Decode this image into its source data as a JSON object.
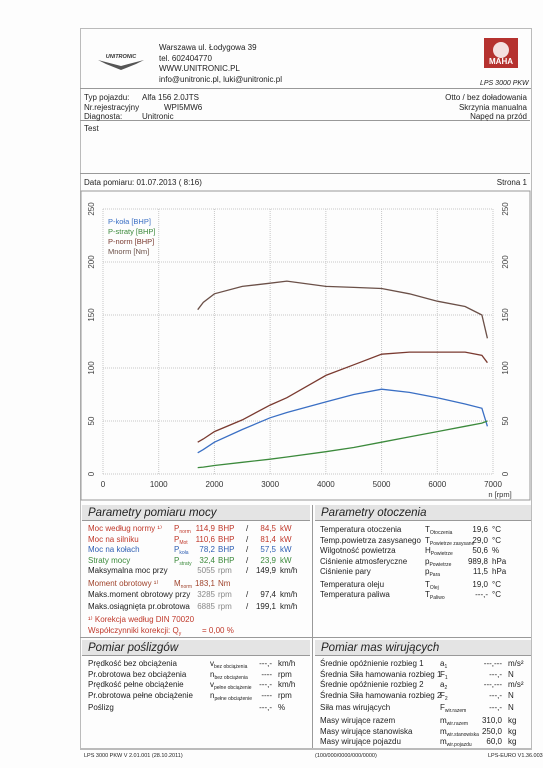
{
  "header": {
    "address": [
      "Warszawa ul. Łodygowa 39",
      "tel. 602404770",
      "WWW.UNITRONIC.PL",
      "info@unitronic.pl, luki@unitronic.pl"
    ],
    "logo_text": "UNITRONIC",
    "brand": "MAHA",
    "model": "LPS 3000 PKW"
  },
  "vehicle": {
    "left": [
      [
        "Typ pojazdu:",
        "Alfa 156 2.0JTS"
      ],
      [
        "Nr.rejestracyjny",
        "WPI5MW6"
      ],
      [
        "Diagnosta:",
        "Unitronic"
      ]
    ],
    "right": [
      "Otto / bez doładowania",
      "Skrzynia manualna",
      "Napęd na przód"
    ]
  },
  "test": "Test",
  "date": "Data pomiaru: 01.07.2013 ( 8:16)",
  "page": "Strona 1",
  "chart_data": {
    "type": "line",
    "x_label": "n [rpm]",
    "x": [
      1700,
      1800,
      2000,
      2500,
      3000,
      3300,
      4000,
      4500,
      5000,
      5500,
      6000,
      6500,
      6800,
      6900
    ],
    "series": [
      {
        "name": "P-koła [BHP]",
        "color": "#3a6fc4",
        "values": [
          20,
          23,
          30,
          42,
          53,
          58,
          68,
          75,
          80,
          77,
          72,
          66,
          62,
          45
        ]
      },
      {
        "name": "P-straty [BHP]",
        "color": "#3c8a3c",
        "values": [
          6,
          6.5,
          8,
          11,
          14,
          16,
          21,
          25,
          30,
          35,
          40,
          45,
          48,
          50
        ]
      },
      {
        "name": "P-norm [BHP]",
        "color": "#7a3a30",
        "values": [
          30,
          33,
          40,
          51,
          65,
          72,
          93,
          103,
          113,
          115,
          115,
          115,
          112,
          105
        ]
      },
      {
        "name": "Mnorm [Nm]",
        "color": "#6b5048",
        "values": [
          155,
          162,
          170,
          177,
          180,
          182,
          177,
          176,
          175,
          170,
          163,
          158,
          150,
          128
        ]
      }
    ],
    "xlim": [
      0,
      7000
    ],
    "xticks": [
      0,
      1000,
      2000,
      3000,
      4000,
      5000,
      6000,
      7000
    ],
    "ylim": [
      0,
      250
    ],
    "yticks": [
      0,
      50,
      100,
      150,
      200,
      250
    ],
    "grid": true
  },
  "power": {
    "title": "Parametry pomiaru mocy",
    "rows": [
      {
        "label": "Moc według normy ¹⁾",
        "sym": "P",
        "sub": "norm",
        "v1": "114,9",
        "u1": "BHP",
        "sep": "/",
        "v2": "84,5",
        "u2": "kW",
        "color": "#c0392b"
      },
      {
        "label": "Moc na silniku",
        "sym": "P",
        "sub": "Mot",
        "v1": "110,6",
        "u1": "BHP",
        "sep": "/",
        "v2": "81,4",
        "u2": "kW",
        "color": "#c0392b"
      },
      {
        "label": "Moc na kołach",
        "sym": "P",
        "sub": "koła",
        "v1": "78,2",
        "u1": "BHP",
        "sep": "/",
        "v2": "57,5",
        "u2": "kW",
        "color": "#2f5fb3"
      },
      {
        "label": "Straty mocy",
        "sym": "P",
        "sub": "straty",
        "v1": "32,4",
        "u1": "BHP",
        "sep": "/",
        "v2": "23,9",
        "u2": "kW",
        "color": "#3c8a3c"
      },
      {
        "label": "Maksymalna moc przy",
        "v1": "5055",
        "u1": "rpm",
        "sep": "/",
        "v2": "149,9",
        "u2": "km/h"
      },
      {
        "label": "Moment obrotowy ¹⁾",
        "sym": "M",
        "sub": "norm",
        "v1": "183,1",
        "u1": "Nm",
        "color": "#a0442c"
      },
      {
        "label": "Maks.moment obrotowy przy",
        "v1": "3285",
        "u1": "rpm",
        "sep": "/",
        "v2": "97,4",
        "u2": "km/h"
      },
      {
        "label": "Maks.osiągnięta pr.obrotowa",
        "v1": "6885",
        "u1": "rpm",
        "sep": "/",
        "v2": "199,1",
        "u2": "km/h"
      },
      {
        "label": "¹⁾ Korekcja według DIN 70020",
        "color": "#c0392b"
      },
      {
        "label": "Współczynniki korekcji: Q",
        "sub": "y",
        "v1": "= 0,00 %",
        "color": "#c0392b"
      }
    ]
  },
  "environment": {
    "title": "Parametry otoczenia",
    "rows": [
      {
        "label": "Temperatura otoczenia",
        "sym": "T",
        "sub": "Otoczenia",
        "v1": "19,6",
        "u1": "°C"
      },
      {
        "label": "Temp.powietrza zasysanego",
        "sym": "T",
        "sub": "Powietrze zasysane",
        "v1": "29,0",
        "u1": "°C"
      },
      {
        "label": "Wilgotność powietrza",
        "sym": "H",
        "sub": "Powietrze",
        "v1": "50,6",
        "u1": "%"
      },
      {
        "label": "Ciśnienie atmosferyczne",
        "sym": "p",
        "sub": "Powietrze",
        "v1": "989,8",
        "u1": "hPa"
      },
      {
        "label": "Ciśnienie pary",
        "sym": "p",
        "sub": "Para",
        "v1": "11,5",
        "u1": "hPa"
      },
      {
        "label": "Temperatura oleju",
        "sym": "T",
        "sub": "Olej",
        "v1": "19,0",
        "u1": "°C"
      },
      {
        "label": "Temperatura paliwa",
        "sym": "T",
        "sub": "Paliwo",
        "v1": "---,-",
        "u1": "°C"
      }
    ]
  },
  "slip": {
    "title": "Pomiar poślizgów",
    "rows": [
      {
        "label": "Prędkość bez obciążenia",
        "sym": "v",
        "sub": "bez obciążenia",
        "v1": "---,-",
        "u1": "km/h"
      },
      {
        "label": "Pr.obrotowa bez obciążenia",
        "sym": "n",
        "sub": "bez obciążenia",
        "v1": "----",
        "u1": "rpm"
      },
      {
        "label": "Prędkość pełne obciążenie",
        "sym": "v",
        "sub": "pełne obciążenie",
        "v1": "---,-",
        "u1": "km/h"
      },
      {
        "label": "Pr.obrotowa pełne obciążenie",
        "sym": "n",
        "sub": "pełne obciążenie",
        "v1": "----",
        "u1": "rpm"
      },
      {
        "label": "Poślizg",
        "v1": "---,-",
        "u1": "%"
      }
    ]
  },
  "masses": {
    "title": "Pomiar mas wirujących",
    "rows": [
      {
        "label": "Średnie opóźnienie rozbieg 1",
        "sym": "a",
        "sub": "1",
        "v1": "---,---",
        "u1": "m/s²"
      },
      {
        "label": "Średnia Siła hamowania rozbieg 1",
        "sym": "F",
        "sub": "1",
        "v1": "---,-",
        "u1": "N"
      },
      {
        "label": "Średnie opóźnienie rozbieg 2",
        "sym": "a",
        "sub": "2",
        "v1": "---,---",
        "u1": "m/s²"
      },
      {
        "label": "Średnia Siła hamowania rozbieg 2",
        "sym": "F",
        "sub": "2",
        "v1": "---,-",
        "u1": "N"
      },
      {
        "label": "Siła mas wirujących",
        "sym": "F",
        "sub": "wir.razem",
        "v1": "---,-",
        "u1": "N"
      },
      {
        "label": "Masy wirujące razem",
        "sym": "m",
        "sub": "wir.razem",
        "v1": "310,0",
        "u1": "kg"
      },
      {
        "label": "Masy wirujące stanowiska",
        "sym": "m",
        "sub": "wir.stanowiska",
        "v1": "250,0",
        "u1": "kg"
      },
      {
        "label": "Masy wirujące pojazdu",
        "sym": "m",
        "sub": "wir.pojazdu",
        "v1": "60,0",
        "u1": "kg"
      }
    ]
  },
  "footer": [
    "LPS 3000 PKW V 2.01.001 (28.10.2011)",
    "(100/000/0000/000/0000)",
    "LPS-EURO V1.36.003"
  ]
}
